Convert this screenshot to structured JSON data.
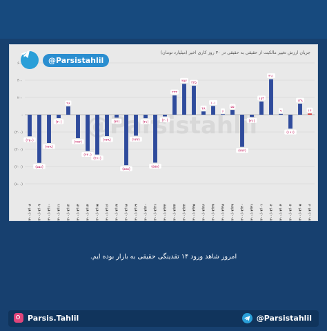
{
  "chart_data": {
    "type": "bar",
    "title": "جریان ارزش تغییر مالکیت از حقیقی به حقیقی در ۳۰ روز کاری اخیر (میلیارد تومان)",
    "categories": [
      "۱۴۰۰/۰۳/۰۸",
      "۱۴۰۰/۰۳/۰۹",
      "۱۴۰۰/۰۳/۱۰",
      "۱۴۰۰/۰۳/۱۱",
      "۱۴۰۰/۰۳/۱۲",
      "۱۴۰۰/۰۳/۱۳",
      "۱۴۰۰/۰۳/۱۴",
      "۱۴۰۰/۰۳/۱۵",
      "۱۴۰۰/۰۳/۱۶",
      "۱۴۰۰/۰۳/۱۷",
      "۱۴۰۰/۰۳/۱۸",
      "۱۴۰۰/۰۳/۱۹",
      "۱۴۰۰/۰۳/۲۰",
      "۱۴۰۰/۰۳/۲۱",
      "۱۴۰۰/۰۳/۲۲",
      "۱۴۰۰/۰۳/۲۳",
      "۱۴۰۰/۰۳/۲۴",
      "۱۴۰۰/۰۳/۲۵",
      "۱۴۰۰/۰۳/۲۶",
      "۱۴۰۰/۰۳/۲۷",
      "۱۴۰۰/۰۳/۲۸",
      "۱۴۰۰/۰۳/۲۹",
      "۱۴۰۰/۰۳/۳۰",
      "۱۴۰۰/۰۳/۳۱",
      "۱۴۰۰/۰۴/۰۱",
      "۱۴۰۰/۰۴/۰۲",
      "۱۴۰۰/۰۴/۰۳",
      "۱۴۰۰/۰۴/۰۴",
      "۱۴۰۰/۰۴/۰۵",
      "۱۴۰۰/۰۴/۰۶"
    ],
    "values": [
      -250,
      -558,
      -328,
      -40,
      96,
      -272,
      -420,
      -461,
      -248,
      -34,
      -585,
      -243,
      -41,
      -555,
      -20,
      223,
      357,
      335,
      38,
      101,
      6,
      55,
      -373,
      -26,
      153,
      411,
      9,
      -161,
      128,
      14
    ],
    "value_labels": [
      "(۲۵۰)",
      "(۵۵۸)",
      "(۳۲۸)",
      "(۴۰)",
      "۹۶",
      "(۲۷۲)",
      "(۴۲۰)",
      "(۴۶۱)",
      "(۲۴۸)",
      "(۳۴)",
      "(۵۸۵)",
      "(۲۴۳)",
      "(۴۱)",
      "(۵۵۵)",
      "(۲۰)",
      "۲۲۳",
      "۳۵۷",
      "۳۳۵",
      "۳۸",
      "۱۰۱",
      "۶",
      "۵۵",
      "(۳۷۳)",
      "(۲۶)",
      "۱۵۳",
      "۴۱۱",
      "۹",
      "(۱۶۱)",
      "۱۲۸",
      "۱۴"
    ],
    "ylim": [
      -1000,
      600
    ],
    "yticks": [
      600,
      400,
      200,
      0,
      -200,
      -400,
      -600,
      -800
    ],
    "ytick_labels": [
      "۶۰۰",
      "۴۰۰",
      "۲۰۰",
      "-",
      "(۲۰۰)",
      "(۴۰۰)",
      "(۶۰۰)",
      "(۸۰۰)"
    ],
    "grid": true,
    "colors": {
      "bar": "#2f4b9c",
      "last_bar": "#d83a3a",
      "label_fill": "#ffffff",
      "label_text": "#c2185b"
    }
  },
  "brand": {
    "handle": "@Parsistahlil",
    "watermark": "@Parsistahlil"
  },
  "caption": "امروز شاهد ورود ۱۴ تقدینگی حقیقی به بازار بوده ایم.",
  "footer": {
    "instagram": "Parsis.Tahlil",
    "telegram": "@Parsistahlil"
  }
}
